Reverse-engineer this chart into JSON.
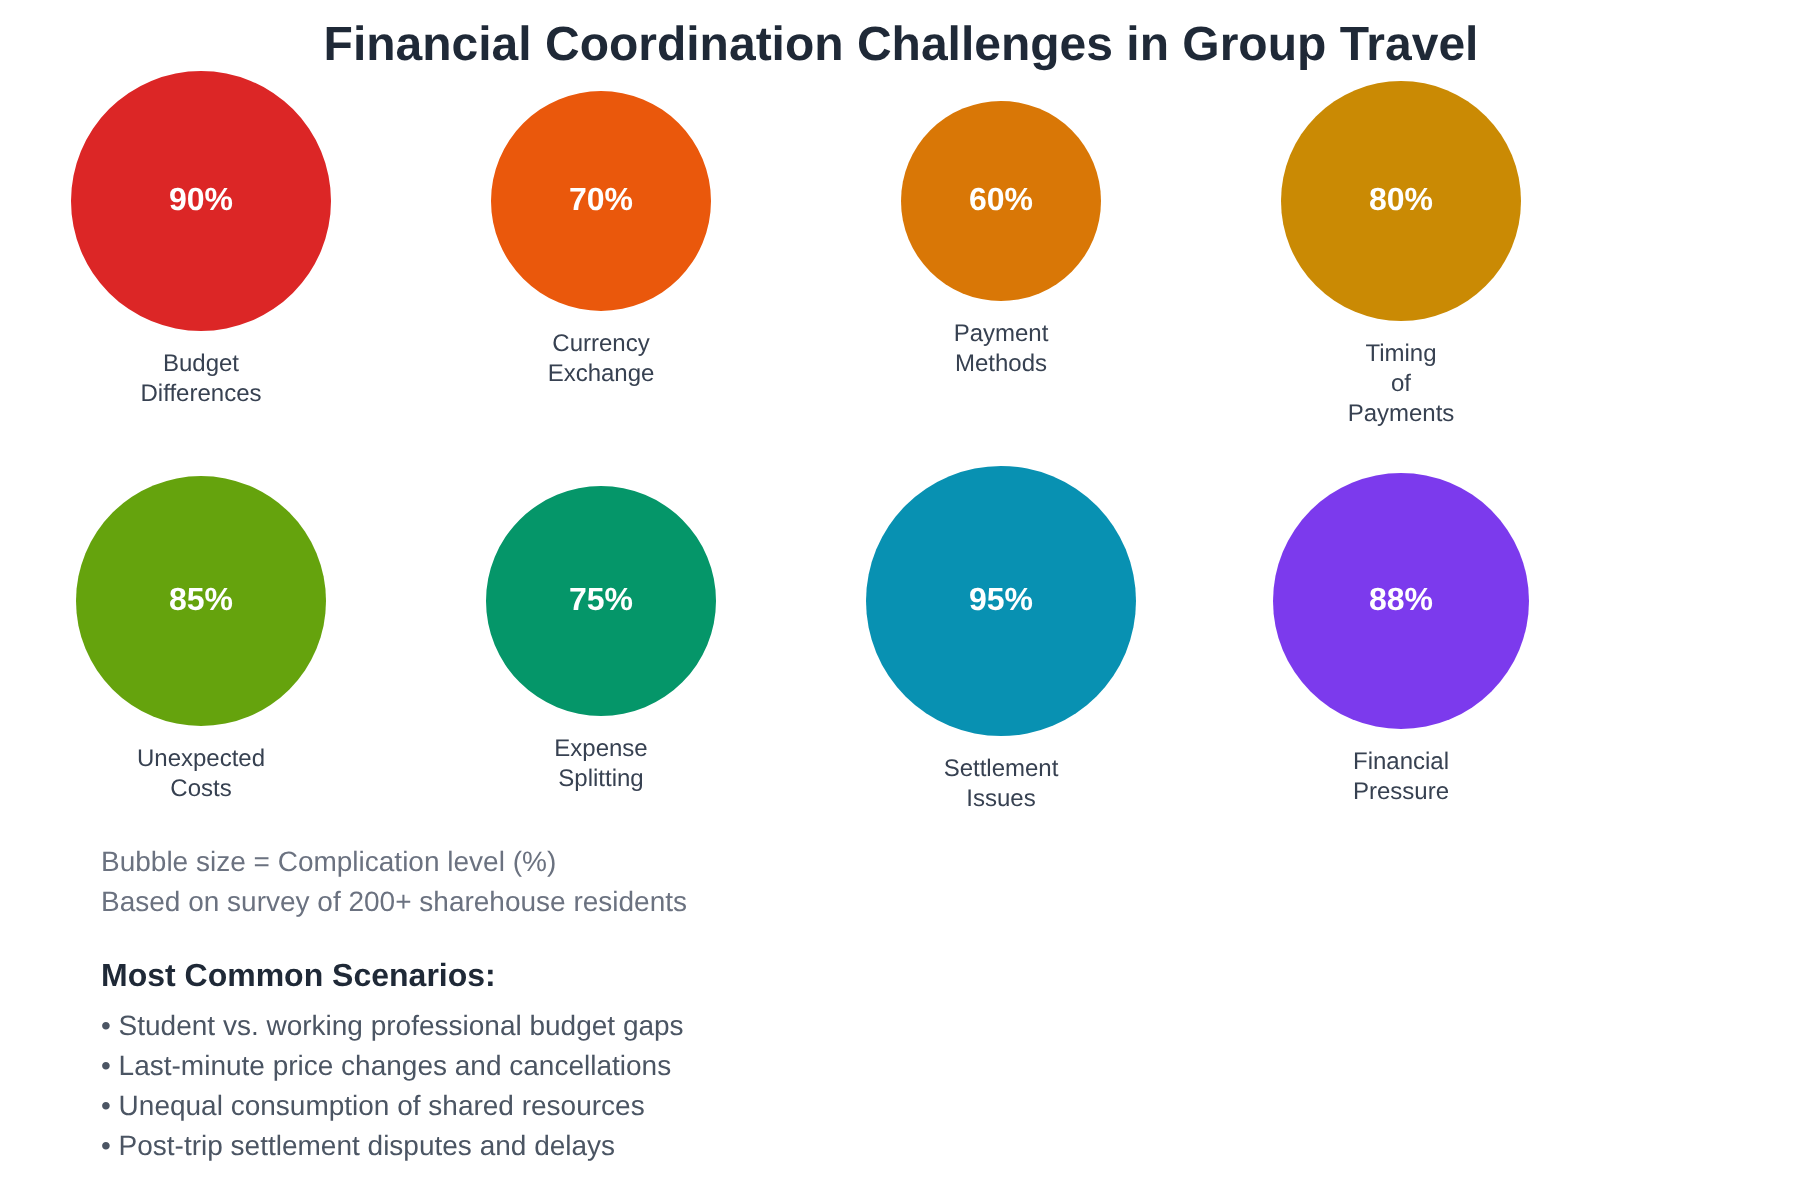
{
  "chart_data": {
    "type": "other",
    "title": "Financial Coordination Challenges in Group Travel",
    "categories": [
      "Budget Differences",
      "Currency Exchange",
      "Payment Methods",
      "Timing of Payments",
      "Unexpected Costs",
      "Expense Splitting",
      "Settlement Issues",
      "Financial Pressure"
    ],
    "values": [
      90,
      70,
      60,
      80,
      85,
      75,
      95,
      88
    ],
    "value_labels": [
      "90%",
      "70%",
      "60%",
      "80%",
      "85%",
      "75%",
      "95%",
      "88%"
    ],
    "colors": [
      "#dc2626",
      "#ea580c",
      "#d97706",
      "#ca8a04",
      "#65a30d",
      "#059669",
      "#0891b2",
      "#7c3aed"
    ],
    "annotations": [
      "Bubble size = Complication level (%)",
      "Based on survey of 200+ sharehouse residents",
      "Most Common Scenarios:",
      "• Student vs. working professional budget gaps",
      "• Last-minute price changes and cancellations",
      "• Unequal consumption of shared resources",
      "• Post-trip settlement disputes and delays"
    ]
  }
}
